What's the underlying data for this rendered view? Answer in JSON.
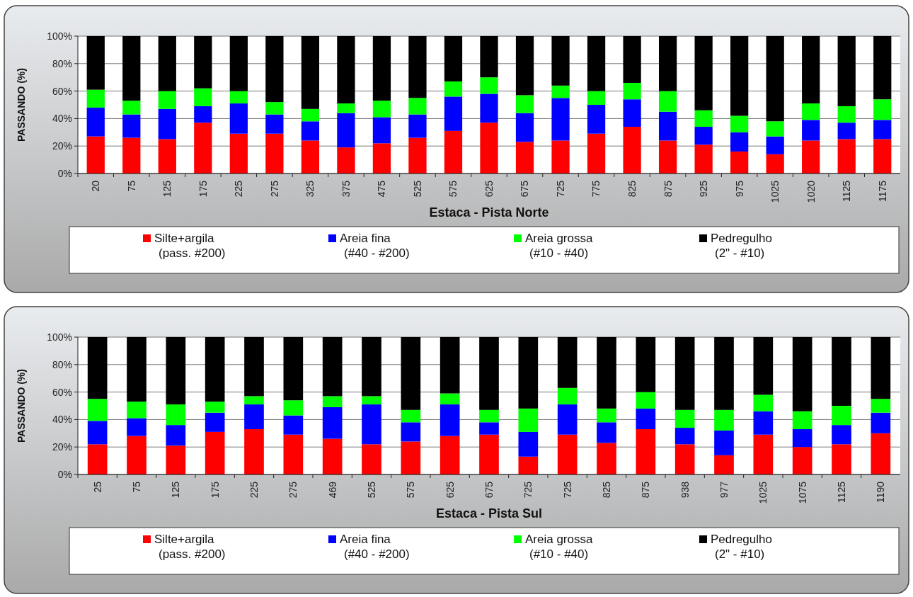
{
  "chart_data": [
    {
      "type": "bar",
      "stacked": true,
      "xlabel": "Estaca - Pista Norte",
      "ylabel": "PASSANDO (%)",
      "categories": [
        "20",
        "75",
        "125",
        "175",
        "225",
        "275",
        "325",
        "375",
        "475",
        "525",
        "575",
        "625",
        "675",
        "725",
        "775",
        "825",
        "875",
        "925",
        "975",
        "1025",
        "1020",
        "1125",
        "1175"
      ],
      "series": [
        {
          "name": "Silte+argila\n(pass. #200)",
          "color": "#ff0000",
          "values": [
            27,
            26,
            25,
            37,
            29,
            29,
            24,
            19,
            22,
            26,
            31,
            37,
            23,
            24,
            29,
            34,
            24,
            21,
            16,
            14,
            24,
            25,
            25
          ]
        },
        {
          "name": "Areia fina\n(#40 - #200)",
          "color": "#0000ff",
          "values": [
            21,
            17,
            22,
            12,
            22,
            14,
            14,
            25,
            19,
            17,
            25,
            21,
            21,
            31,
            21,
            20,
            21,
            13,
            14,
            13,
            15,
            12,
            14
          ]
        },
        {
          "name": "Areia grossa\n(#10 - #40)",
          "color": "#00ff00",
          "values": [
            13,
            10,
            13,
            13,
            9,
            9,
            9,
            7,
            12,
            12,
            11,
            12,
            13,
            9,
            10,
            12,
            15,
            12,
            12,
            11,
            12,
            12,
            15
          ]
        },
        {
          "name": "Pedregulho\n(2\" - #10)",
          "color": "#000000",
          "values": [
            39,
            47,
            40,
            38,
            40,
            48,
            53,
            49,
            47,
            45,
            33,
            30,
            43,
            36,
            40,
            34,
            40,
            54,
            58,
            62,
            49,
            51,
            46
          ]
        }
      ],
      "ylim": [
        0,
        100
      ],
      "yticks": [
        {
          "value": 0,
          "label": "0%"
        },
        {
          "value": 20,
          "label": "20%"
        },
        {
          "value": 40,
          "label": "40%"
        },
        {
          "value": 60,
          "label": "60%"
        },
        {
          "value": 80,
          "label": "80%"
        },
        {
          "value": 100,
          "label": "100%"
        }
      ],
      "grid": "y",
      "legend": "bottom"
    },
    {
      "type": "bar",
      "stacked": true,
      "xlabel": "Estaca - Pista Sul",
      "ylabel": "PASSANDO (%)",
      "categories": [
        "25",
        "75",
        "125",
        "175",
        "225",
        "275",
        "469",
        "525",
        "575",
        "625",
        "675",
        "725",
        "725",
        "825",
        "875",
        "938",
        "977",
        "1025",
        "1075",
        "1125",
        "1190"
      ],
      "series": [
        {
          "name": "Silte+argila\n(pass. #200)",
          "color": "#ff0000",
          "values": [
            22,
            28,
            21,
            31,
            33,
            29,
            26,
            22,
            24,
            28,
            29,
            13,
            29,
            23,
            33,
            22,
            14,
            29,
            20,
            22,
            30
          ]
        },
        {
          "name": "Areia fina\n(#40 - #200)",
          "color": "#0000ff",
          "values": [
            17,
            13,
            15,
            14,
            18,
            14,
            23,
            29,
            14,
            23,
            9,
            18,
            22,
            15,
            15,
            12,
            18,
            17,
            13,
            14,
            15
          ]
        },
        {
          "name": "Areia grossa\n(#10 - #40)",
          "color": "#00ff00",
          "values": [
            16,
            12,
            15,
            8,
            6,
            11,
            8,
            6,
            9,
            8,
            9,
            17,
            12,
            10,
            12,
            13,
            15,
            12,
            13,
            14,
            10
          ]
        },
        {
          "name": "Pedregulho\n(2\" - #10)",
          "color": "#000000",
          "values": [
            45,
            47,
            49,
            47,
            43,
            46,
            43,
            43,
            53,
            41,
            53,
            52,
            37,
            52,
            40,
            53,
            53,
            42,
            54,
            50,
            45
          ]
        }
      ],
      "ylim": [
        0,
        100
      ],
      "yticks": [
        {
          "value": 0,
          "label": "0%"
        },
        {
          "value": 20,
          "label": "20%"
        },
        {
          "value": 40,
          "label": "40%"
        },
        {
          "value": 60,
          "label": "60%"
        },
        {
          "value": 80,
          "label": "80%"
        },
        {
          "value": 100,
          "label": "100%"
        }
      ],
      "grid": "y",
      "legend": "bottom"
    }
  ]
}
